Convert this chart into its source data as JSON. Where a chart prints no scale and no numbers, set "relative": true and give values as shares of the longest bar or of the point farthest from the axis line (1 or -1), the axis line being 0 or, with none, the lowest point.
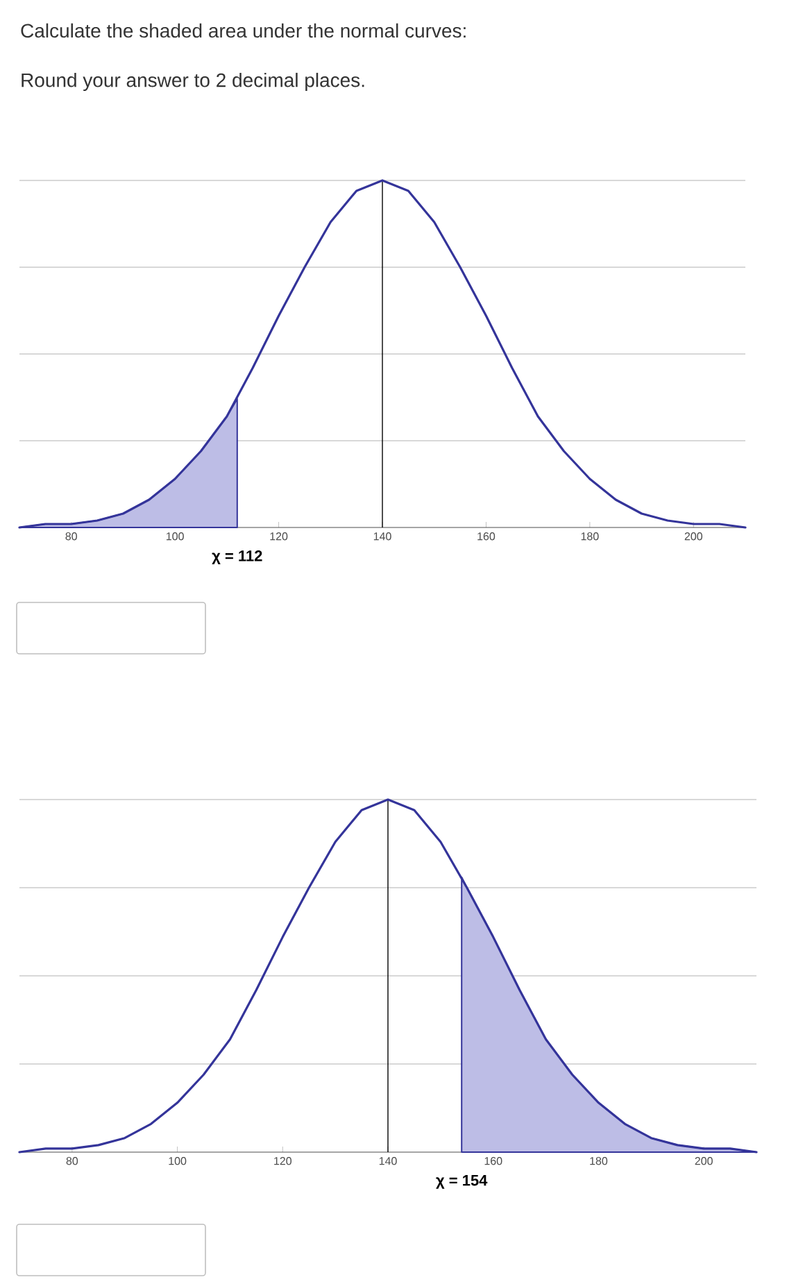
{
  "chart_data": [
    {
      "type": "line",
      "title": "Calculate the shaded area under the normal curves:",
      "subtitle": "Round your answer to 2 decimal places.",
      "relative": true,
      "xlim": [
        70,
        210
      ],
      "xticks": [
        80,
        100,
        120,
        140,
        160,
        180,
        200
      ],
      "grid": "y",
      "series": [
        {
          "color": "#34349a",
          "x": [
            70,
            75,
            80,
            85,
            90,
            95,
            100,
            105,
            110,
            115,
            120,
            125,
            130,
            135,
            140,
            145,
            150,
            155,
            160,
            165,
            170,
            175,
            180,
            185,
            190,
            195,
            200,
            205,
            210
          ],
          "values": [
            0.0,
            0.01,
            0.01,
            0.02,
            0.04,
            0.08,
            0.14,
            0.22,
            0.32,
            0.46,
            0.61,
            0.75,
            0.88,
            0.97,
            1.0,
            0.97,
            0.88,
            0.75,
            0.61,
            0.46,
            0.32,
            0.22,
            0.14,
            0.08,
            0.04,
            0.02,
            0.01,
            0.01,
            0.0
          ]
        },
        {
          "type": "area",
          "color": "#bdbde6",
          "x": [
            70,
            75,
            80,
            85,
            90,
            95,
            100,
            105,
            110,
            112
          ],
          "values": [
            0.0,
            0.01,
            0.01,
            0.02,
            0.04,
            0.08,
            0.14,
            0.22,
            0.32,
            0.37
          ]
        }
      ],
      "ref_lines": [
        {
          "axis": "x",
          "value": 140,
          "color": "#000000"
        }
      ],
      "annotations": [
        {
          "text": "χ = 112",
          "x": 112,
          "y": 0
        }
      ]
    },
    {
      "type": "line",
      "relative": true,
      "xlim": [
        70,
        210
      ],
      "xticks": [
        80,
        100,
        120,
        140,
        160,
        180,
        200
      ],
      "grid": "y",
      "series": [
        {
          "color": "#34349a",
          "x": [
            70,
            75,
            80,
            85,
            90,
            95,
            100,
            105,
            110,
            115,
            120,
            125,
            130,
            135,
            140,
            145,
            150,
            155,
            160,
            165,
            170,
            175,
            180,
            185,
            190,
            195,
            200,
            205,
            210
          ],
          "values": [
            0.0,
            0.01,
            0.01,
            0.02,
            0.04,
            0.08,
            0.14,
            0.22,
            0.32,
            0.46,
            0.61,
            0.75,
            0.88,
            0.97,
            1.0,
            0.97,
            0.88,
            0.75,
            0.61,
            0.46,
            0.32,
            0.22,
            0.14,
            0.08,
            0.04,
            0.02,
            0.01,
            0.01,
            0.0
          ]
        },
        {
          "type": "area",
          "color": "#bdbde6",
          "x": [
            154,
            155,
            160,
            165,
            170,
            175,
            180,
            185,
            190,
            195,
            200,
            205,
            210
          ],
          "values": [
            0.78,
            0.75,
            0.61,
            0.46,
            0.32,
            0.22,
            0.14,
            0.08,
            0.04,
            0.02,
            0.01,
            0.01,
            0.0
          ]
        }
      ],
      "ref_lines": [
        {
          "axis": "x",
          "value": 140,
          "color": "#000000"
        }
      ],
      "annotations": [
        {
          "text": "χ = 154",
          "x": 154,
          "y": 0
        }
      ]
    }
  ]
}
